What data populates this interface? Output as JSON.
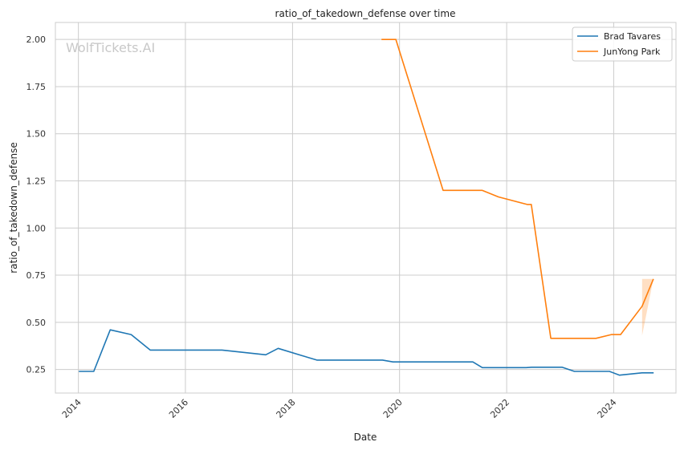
{
  "chart_data": {
    "type": "line",
    "title": "ratio_of_takedown_defense over time",
    "xlabel": "Date",
    "ylabel": "ratio_of_takedown_defense",
    "watermark": "WolfTickets.AI",
    "x_ticks": [
      "2014",
      "2016",
      "2018",
      "2020",
      "2022",
      "2024"
    ],
    "y_ticks": [
      "0.25",
      "0.50",
      "0.75",
      "1.00",
      "1.25",
      "1.50",
      "1.75",
      "2.00"
    ],
    "xlim": [
      "2013-07-28",
      "2025-03-01"
    ],
    "ylim": [
      0.125,
      2.09
    ],
    "grid": true,
    "legend_position": "top-right",
    "series": [
      {
        "name": "Brad Tavares",
        "color": "#1f77b4",
        "points": [
          {
            "x": "2014-01-04",
            "y": 0.24
          },
          {
            "x": "2014-04-16",
            "y": 0.24
          },
          {
            "x": "2014-08-06",
            "y": 0.46
          },
          {
            "x": "2014-12-27",
            "y": 0.435
          },
          {
            "x": "2015-05-06",
            "y": 0.353
          },
          {
            "x": "2016-09-07",
            "y": 0.353
          },
          {
            "x": "2017-07-02",
            "y": 0.328
          },
          {
            "x": "2017-09-25",
            "y": 0.362
          },
          {
            "x": "2018-02-28",
            "y": 0.325
          },
          {
            "x": "2018-06-16",
            "y": 0.3
          },
          {
            "x": "2019-09-07",
            "y": 0.3
          },
          {
            "x": "2019-11-17",
            "y": 0.29
          },
          {
            "x": "2021-05-15",
            "y": 0.29
          },
          {
            "x": "2021-07-19",
            "y": 0.26
          },
          {
            "x": "2022-05-14",
            "y": 0.26
          },
          {
            "x": "2022-06-20",
            "y": 0.262
          },
          {
            "x": "2023-01-13",
            "y": 0.262
          },
          {
            "x": "2023-04-08",
            "y": 0.24
          },
          {
            "x": "2023-12-03",
            "y": 0.24
          },
          {
            "x": "2024-02-10",
            "y": 0.22
          },
          {
            "x": "2024-07-12",
            "y": 0.232
          },
          {
            "x": "2024-09-30",
            "y": 0.232
          }
        ]
      },
      {
        "name": "JunYong Park",
        "color": "#ff7f0e",
        "points": [
          {
            "x": "2019-08-31",
            "y": 2.0
          },
          {
            "x": "2019-12-07",
            "y": 2.0
          },
          {
            "x": "2020-10-24",
            "y": 1.2
          },
          {
            "x": "2021-07-17",
            "y": 1.2
          },
          {
            "x": "2021-11-06",
            "y": 1.165
          },
          {
            "x": "2022-05-21",
            "y": 1.125
          },
          {
            "x": "2022-06-18",
            "y": 1.125
          },
          {
            "x": "2022-10-29",
            "y": 0.415
          },
          {
            "x": "2023-09-02",
            "y": 0.415
          },
          {
            "x": "2023-12-16",
            "y": 0.435
          },
          {
            "x": "2024-02-17",
            "y": 0.435
          },
          {
            "x": "2024-07-13",
            "y": 0.585
          },
          {
            "x": "2024-09-28",
            "y": 0.73
          }
        ],
        "confidence_band": [
          {
            "x": "2024-07-13",
            "low": 0.43,
            "high": 0.73
          },
          {
            "x": "2024-09-28",
            "low": 0.73,
            "high": 0.73
          }
        ]
      }
    ]
  }
}
